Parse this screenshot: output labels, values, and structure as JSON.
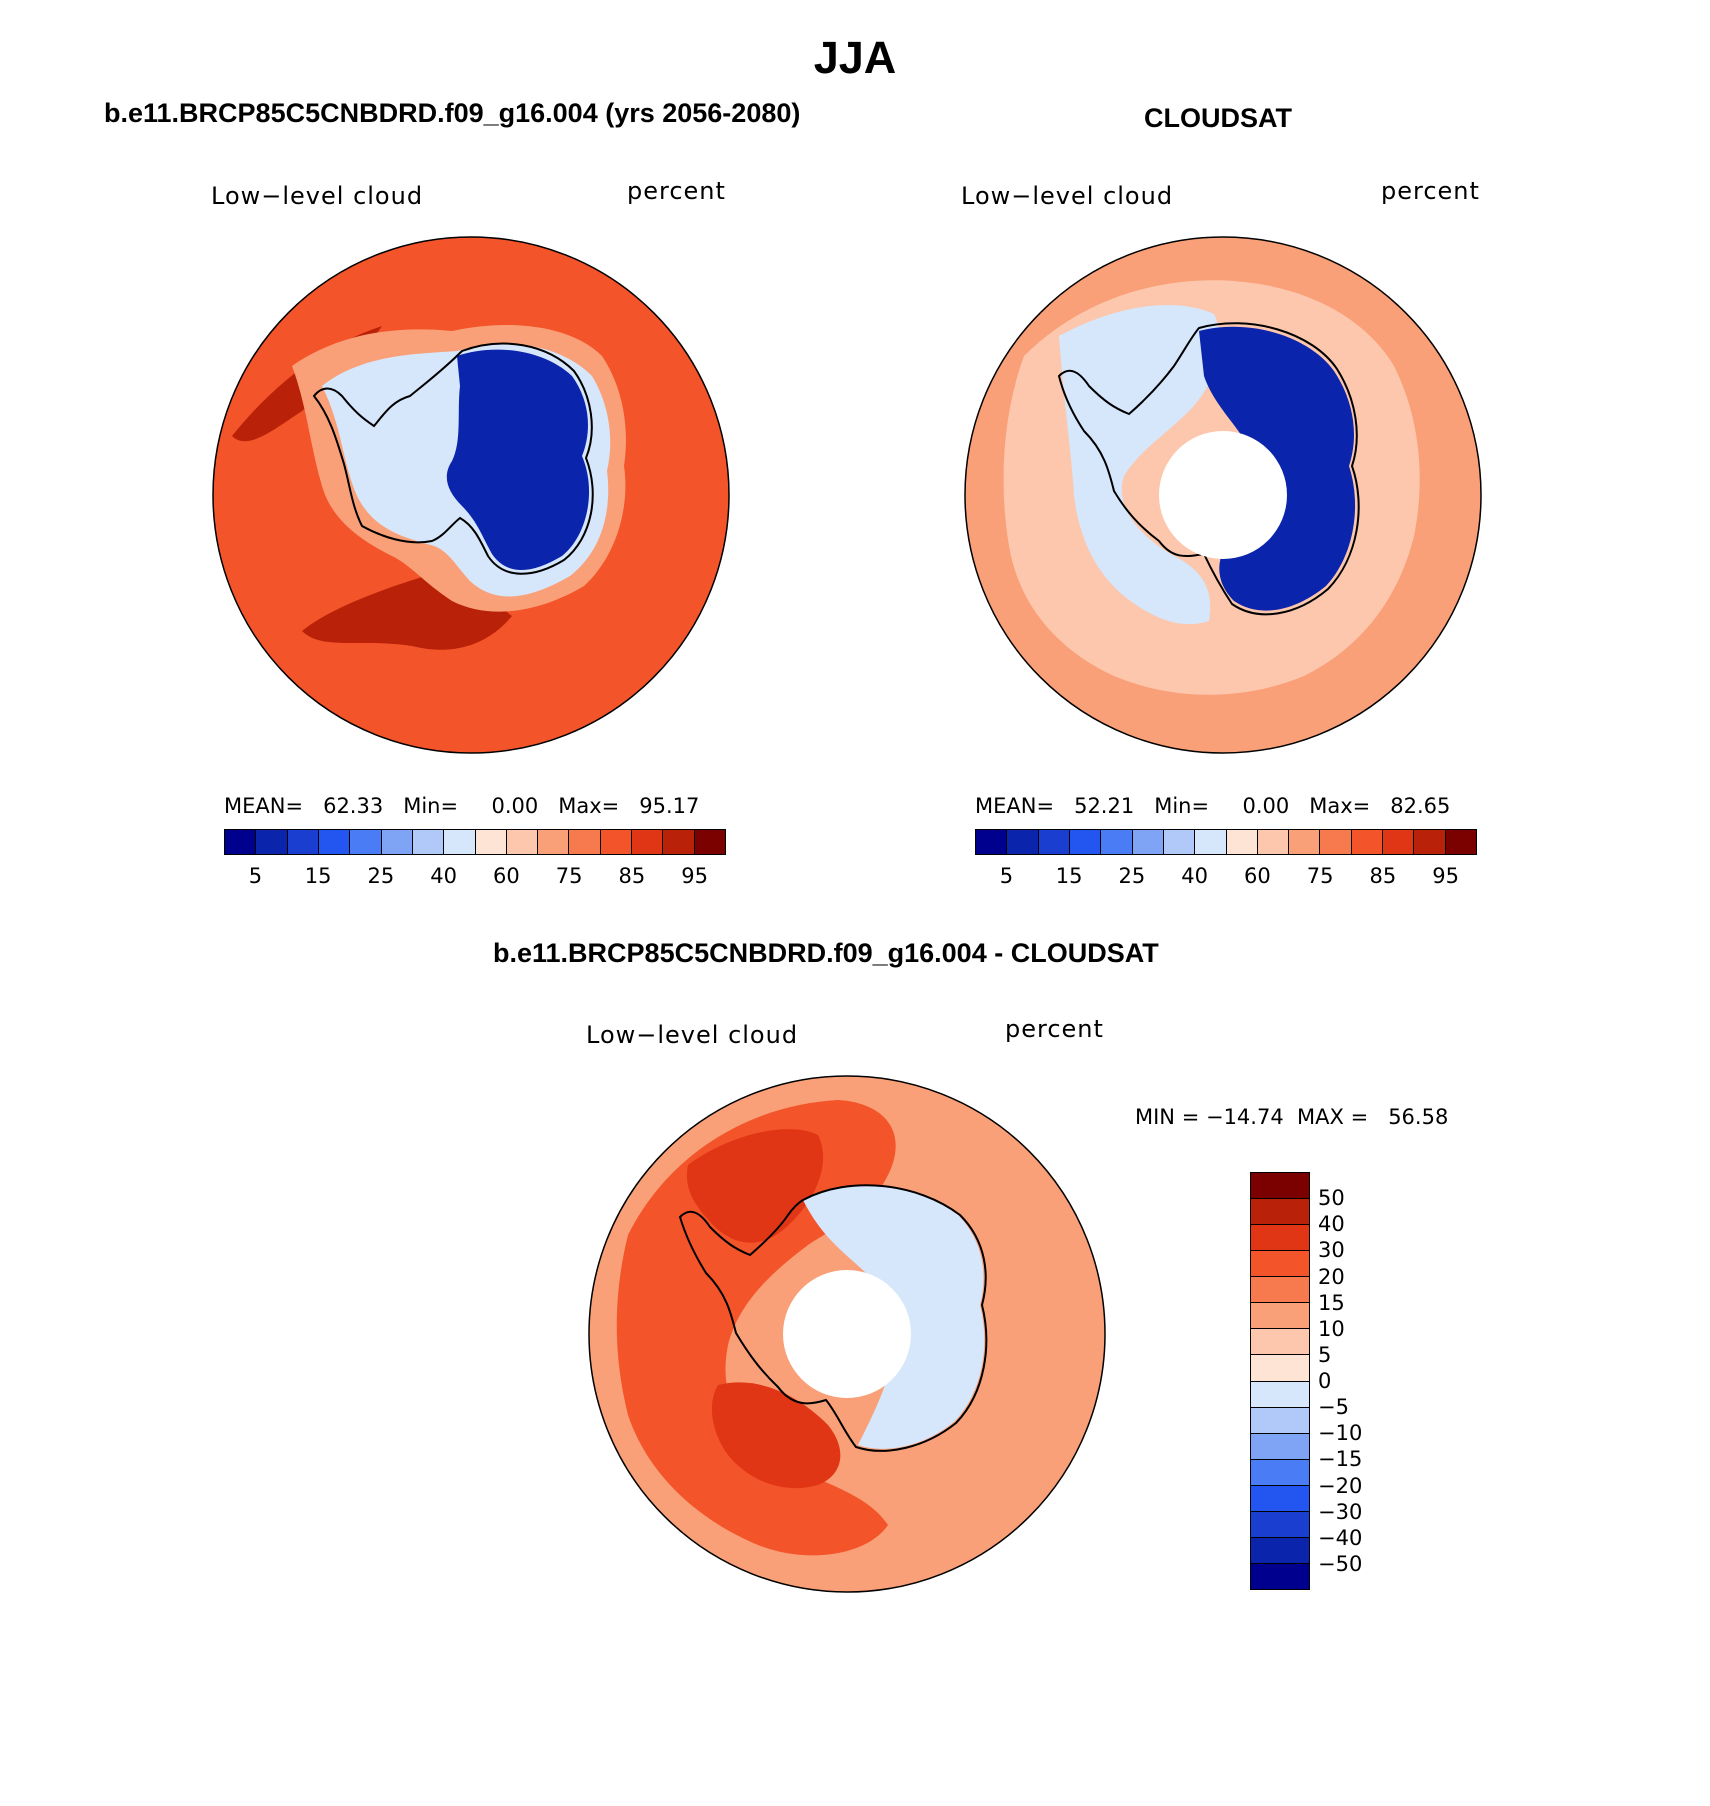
{
  "page": {
    "title": "JJA",
    "panels": [
      {
        "title": "b.e11.BRCP85C5CNBDRD.f09_g16.004 (yrs 2056-2080)",
        "left_label": "Low−level cloud",
        "right_label": "percent",
        "stats": "MEAN=   62.33   Min=     0.00   Max=   95.17",
        "colorbar_ticks": [
          "5",
          "15",
          "25",
          "40",
          "60",
          "75",
          "85",
          "95"
        ]
      },
      {
        "title": "CLOUDSAT",
        "left_label": "Low−level cloud",
        "right_label": "percent",
        "stats": "MEAN=   52.21   Min=     0.00   Max=   82.65",
        "colorbar_ticks": [
          "5",
          "15",
          "25",
          "40",
          "60",
          "75",
          "85",
          "95"
        ]
      },
      {
        "title": "b.e11.BRCP85C5CNBDRD.f09_g16.004 - CLOUDSAT",
        "left_label": "Low−level cloud",
        "right_label": "percent",
        "stats": "MIN = −14.74  MAX =   56.58",
        "colorbar_ticks": [
          "50",
          "40",
          "30",
          "20",
          "15",
          "10",
          "5",
          "0",
          "−5",
          "−10",
          "−15",
          "−20",
          "−30",
          "−40",
          "−50"
        ]
      }
    ]
  },
  "chart_data": [
    {
      "type": "heatmap",
      "projection": "south-polar-stereographic",
      "title": "b.e11.BRCP85C5CNBDRD.f09_g16.004 (yrs 2056-2080)",
      "variable": "Low−level cloud",
      "units": "percent",
      "mean": 62.33,
      "min": 0.0,
      "max": 95.17,
      "levels": [
        5,
        10,
        15,
        20,
        25,
        30,
        40,
        50,
        60,
        70,
        75,
        80,
        85,
        90,
        95
      ],
      "colors": [
        "#00008f",
        "#0b24ac",
        "#1a3fd0",
        "#2356f0",
        "#4a7df5",
        "#7fa4f6",
        "#b1c9f8",
        "#d6e6fb",
        "#fde4d5",
        "#fcc7ad",
        "#f9a078",
        "#f77a4e",
        "#f3542a",
        "#e03616",
        "#b92208",
        "#7b0000"
      ],
      "overall_level": 80,
      "regions": [
        {
          "region": "outer ocean",
          "level": 80
        },
        {
          "region": "sea-ice edge band",
          "level": 70
        },
        {
          "region": "west of Antarctic Peninsula",
          "level": 90
        },
        {
          "region": "coastal Antarctica",
          "level": 40
        },
        {
          "region": "East Antarctic plateau",
          "level": 5
        }
      ]
    },
    {
      "type": "heatmap",
      "projection": "south-polar-stereographic",
      "title": "CLOUDSAT",
      "variable": "Low−level cloud",
      "units": "percent",
      "mean": 52.21,
      "min": 0.0,
      "max": 82.65,
      "levels": [
        5,
        10,
        15,
        20,
        25,
        30,
        40,
        50,
        60,
        70,
        75,
        80,
        85,
        90,
        95
      ],
      "colors": [
        "#00008f",
        "#0b24ac",
        "#1a3fd0",
        "#2356f0",
        "#4a7df5",
        "#7fa4f6",
        "#b1c9f8",
        "#d6e6fb",
        "#fde4d5",
        "#fcc7ad",
        "#f9a078",
        "#f77a4e",
        "#f3542a",
        "#e03616",
        "#b92208",
        "#7b0000"
      ],
      "missing_polar_cap": true,
      "overall_level": 60,
      "regions": [
        {
          "region": "outer ocean",
          "level": 70
        },
        {
          "region": "middle ocean band",
          "level": 60
        },
        {
          "region": "West Antarctica",
          "level": 40
        },
        {
          "region": "East Antarctic plateau",
          "level": 5
        }
      ]
    },
    {
      "type": "heatmap",
      "projection": "south-polar-stereographic",
      "title": "b.e11.BRCP85C5CNBDRD.f09_g16.004 - CLOUDSAT",
      "variable": "Low−level cloud",
      "units": "percent",
      "min": -14.74,
      "max": 56.58,
      "levels": [
        -50,
        -40,
        -30,
        -20,
        -15,
        -10,
        -5,
        0,
        5,
        10,
        15,
        20,
        30,
        40,
        50
      ],
      "colors": [
        "#00008f",
        "#0b24ac",
        "#1a3fd0",
        "#2356f0",
        "#4a7df5",
        "#7fa4f6",
        "#b1c9f8",
        "#d6e6fb",
        "#fde4d5",
        "#fcc7ad",
        "#f9a078",
        "#f77a4e",
        "#f3542a",
        "#e03616",
        "#b92208",
        "#7b0000"
      ],
      "missing_polar_cap": true,
      "overall_level": 10,
      "regions": [
        {
          "region": "Indian/Pacific sector ocean",
          "level": 10
        },
        {
          "region": "Atlantic sector ocean",
          "level": 20
        },
        {
          "region": "Ross/Amundsen Sea",
          "level": 30
        },
        {
          "region": "East Antarctica",
          "level": -5
        },
        {
          "region": "Antarctic coast",
          "level": 0
        }
      ]
    }
  ]
}
